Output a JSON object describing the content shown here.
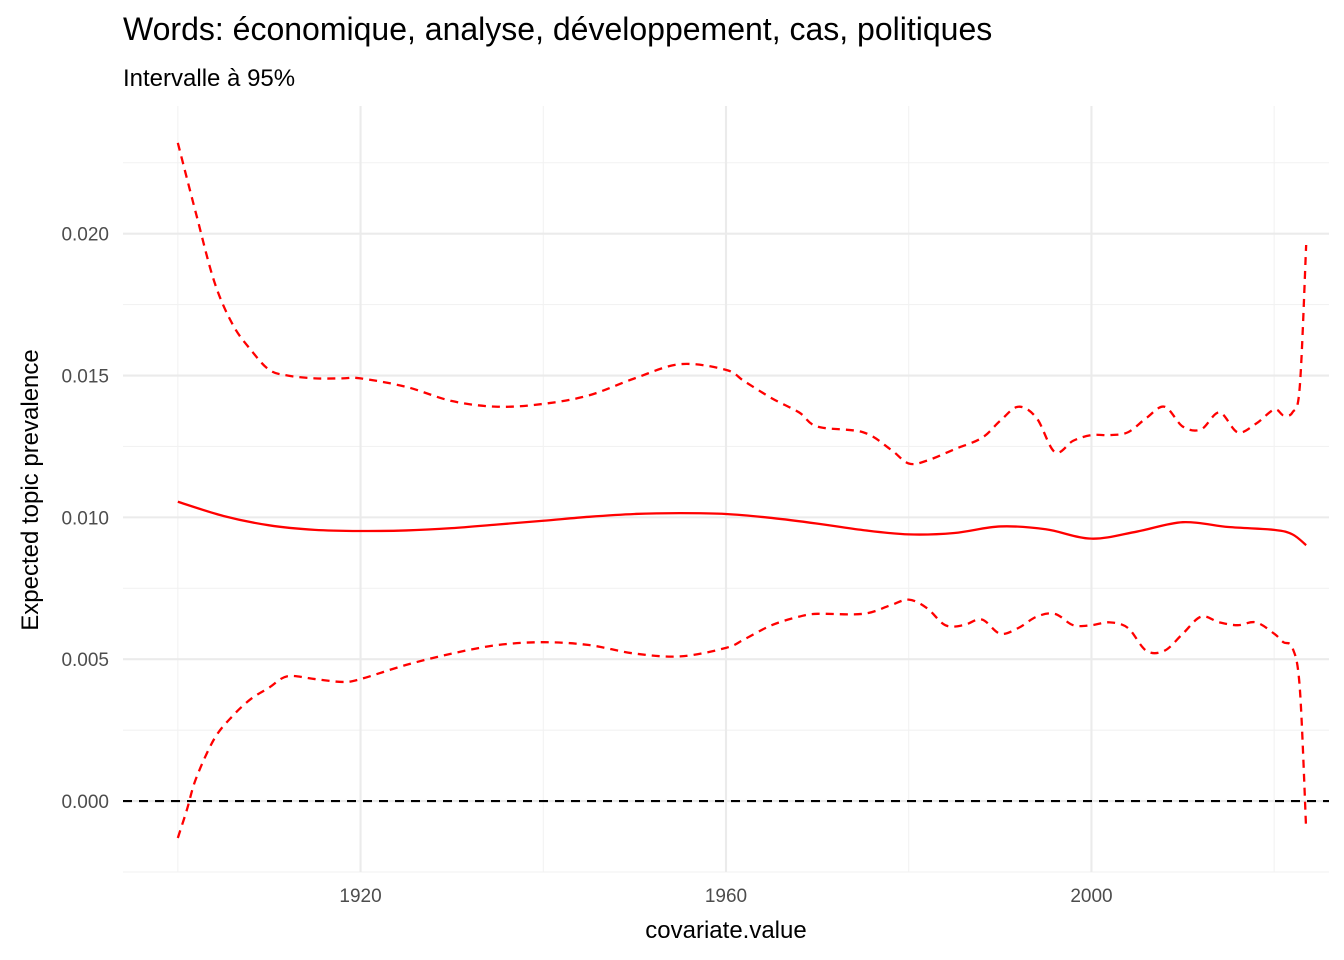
{
  "chart_data": {
    "type": "line",
    "title": "Words: économique, analyse, développement, cas, politiques",
    "subtitle": "Intervalle à 95%",
    "xlabel": "covariate.value",
    "ylabel": "Expected topic prevalence",
    "xlim": [
      1894,
      2026
    ],
    "ylim": [
      -0.0025,
      0.0245
    ],
    "x_ticks": [
      1920,
      1960,
      2000
    ],
    "x_tick_labels": [
      "1920",
      "1960",
      "2000"
    ],
    "x_minor_ticks": [
      1900,
      1940,
      1980,
      2020
    ],
    "y_ticks": [
      0.0,
      0.005,
      0.01,
      0.015,
      0.02
    ],
    "y_tick_labels": [
      "0.000",
      "0.005",
      "0.010",
      "0.015",
      "0.020"
    ],
    "y_minor_ticks": [
      -0.0025,
      0.0025,
      0.0075,
      0.0125,
      0.0175,
      0.0225
    ],
    "grid": true,
    "reference_line": {
      "y": 0,
      "color": "#000000",
      "style": "dashed"
    },
    "series": [
      {
        "role": "estimate",
        "color": "#ff0000",
        "style": "solid",
        "x": [
          1900,
          1905,
          1910,
          1915,
          1920,
          1925,
          1930,
          1935,
          1940,
          1945,
          1950,
          1955,
          1960,
          1965,
          1970,
          1975,
          1980,
          1985,
          1990,
          1995,
          2000,
          2005,
          2010,
          2015,
          2020,
          2022,
          2023.5
        ],
        "y": [
          0.01055,
          0.01005,
          0.00972,
          0.00956,
          0.00952,
          0.00954,
          0.00962,
          0.00975,
          0.00988,
          0.01002,
          0.01012,
          0.01015,
          0.01012,
          0.00998,
          0.00978,
          0.00955,
          0.0094,
          0.00945,
          0.00968,
          0.00958,
          0.00925,
          0.0095,
          0.00983,
          0.00966,
          0.00956,
          0.0094,
          0.00902
        ]
      },
      {
        "role": "upper 95%",
        "color": "#ff0000",
        "style": "dashed",
        "x": [
          1900,
          1902,
          1904,
          1906,
          1908,
          1910,
          1912,
          1915,
          1918,
          1920,
          1925,
          1930,
          1935,
          1940,
          1945,
          1950,
          1955,
          1960,
          1962,
          1965,
          1968,
          1970,
          1975,
          1978,
          1980,
          1982,
          1985,
          1988,
          1990,
          1992,
          1994,
          1996,
          1998,
          2000,
          2002,
          2004,
          2006,
          2008,
          2010,
          2012,
          2014,
          2016,
          2018,
          2020,
          2021,
          2022,
          2022.8,
          2023.5
        ],
        "y": [
          0.0232,
          0.0207,
          0.0183,
          0.0168,
          0.0159,
          0.0152,
          0.015,
          0.0149,
          0.0149,
          0.0149,
          0.0146,
          0.0141,
          0.0139,
          0.014,
          0.0143,
          0.0149,
          0.0154,
          0.0152,
          0.0148,
          0.0142,
          0.0137,
          0.0132,
          0.013,
          0.0124,
          0.0119,
          0.012,
          0.0124,
          0.0128,
          0.0134,
          0.0139,
          0.0135,
          0.0123,
          0.0127,
          0.0129,
          0.0129,
          0.013,
          0.0135,
          0.0139,
          0.0132,
          0.0131,
          0.0137,
          0.013,
          0.0133,
          0.0138,
          0.0136,
          0.0137,
          0.0146,
          0.0196
        ]
      },
      {
        "role": "lower 95%",
        "color": "#ff0000",
        "style": "dashed",
        "x": [
          1900,
          1901,
          1902,
          1904,
          1906,
          1908,
          1910,
          1912,
          1915,
          1918,
          1920,
          1925,
          1930,
          1935,
          1940,
          1945,
          1950,
          1955,
          1960,
          1962,
          1965,
          1968,
          1970,
          1975,
          1978,
          1980,
          1982,
          1984,
          1986,
          1988,
          1990,
          1992,
          1994,
          1996,
          1998,
          2000,
          2002,
          2004,
          2006,
          2008,
          2010,
          2012,
          2014,
          2016,
          2018,
          2020,
          2021,
          2022,
          2022.8,
          2023.5
        ],
        "y": [
          -0.0013,
          -0.0003,
          0.0008,
          0.0022,
          0.003,
          0.0036,
          0.004,
          0.0044,
          0.0043,
          0.0042,
          0.0043,
          0.0048,
          0.0052,
          0.0055,
          0.0056,
          0.0055,
          0.0052,
          0.0051,
          0.0054,
          0.0057,
          0.0062,
          0.0065,
          0.0066,
          0.0066,
          0.0069,
          0.0071,
          0.0068,
          0.0062,
          0.0062,
          0.0064,
          0.0059,
          0.0061,
          0.0065,
          0.0066,
          0.0062,
          0.0062,
          0.0063,
          0.0061,
          0.0053,
          0.0053,
          0.0059,
          0.0065,
          0.0063,
          0.0062,
          0.0063,
          0.0059,
          0.0056,
          0.0054,
          0.004,
          -0.001
        ]
      }
    ]
  }
}
